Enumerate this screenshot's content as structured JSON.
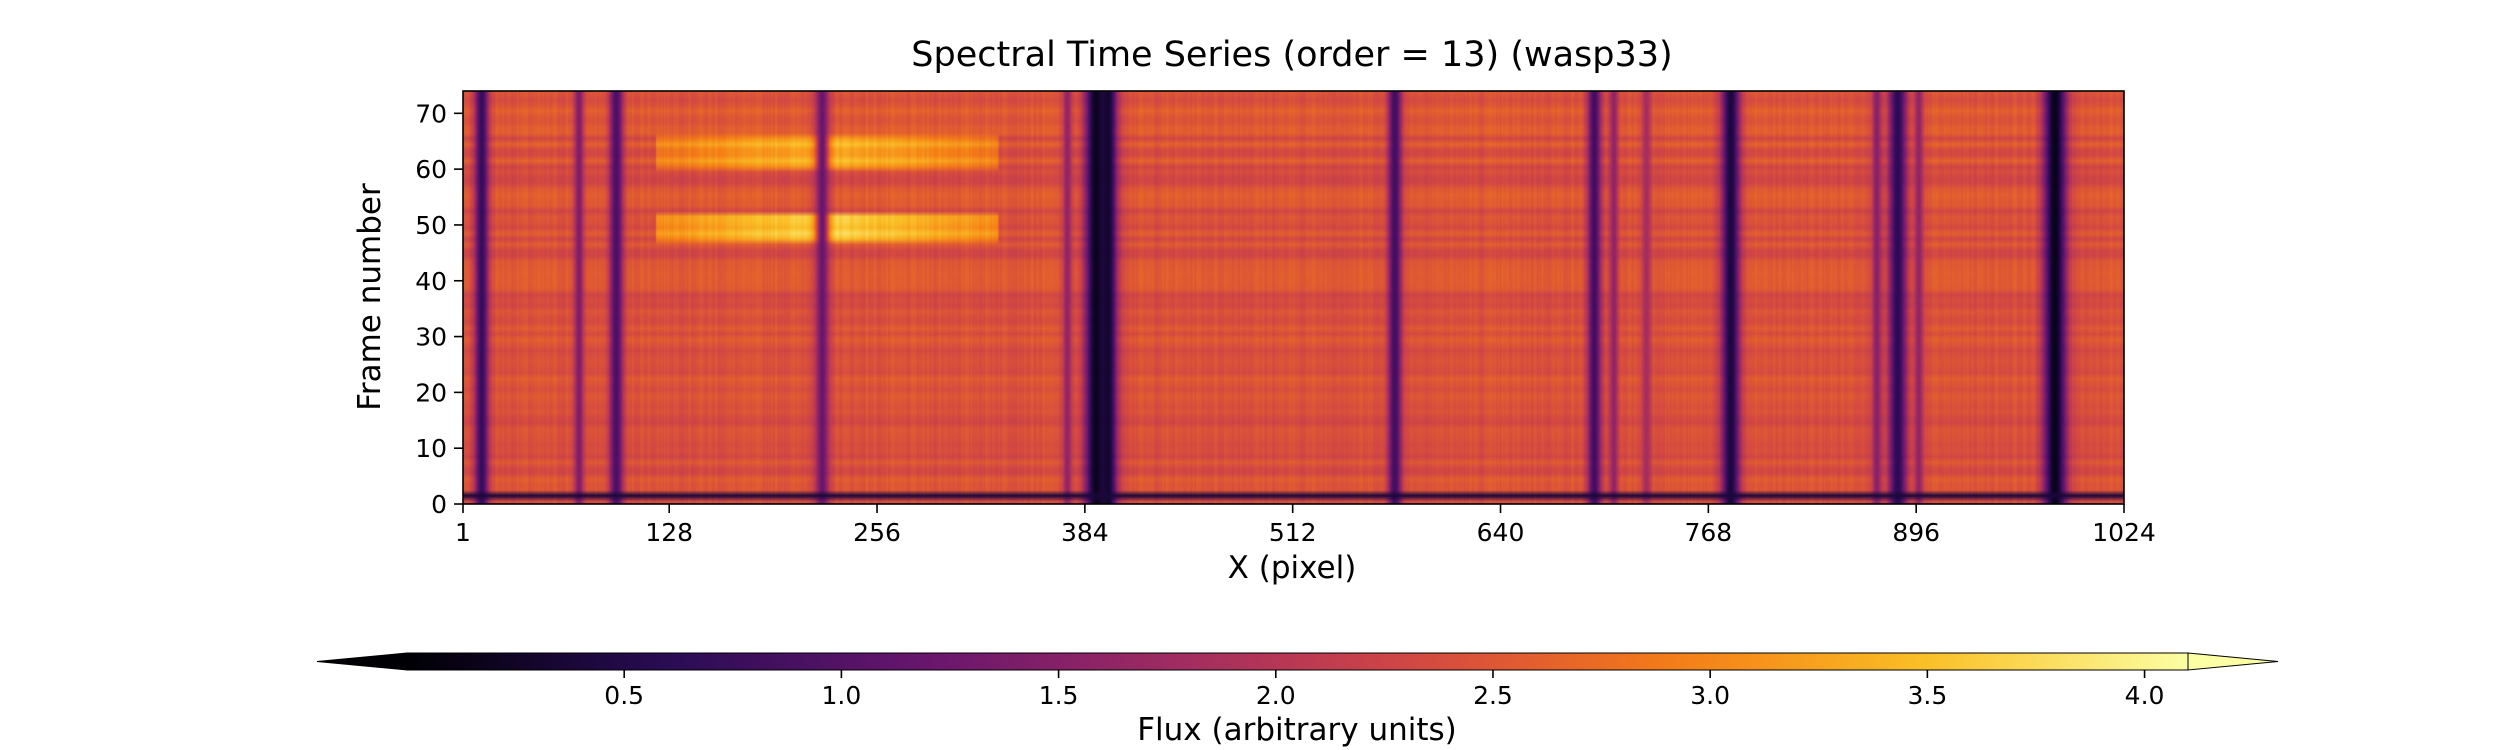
{
  "chart_data": {
    "type": "heatmap",
    "title": "Spectral Time Series (order = 13) (wasp33)",
    "xlabel": "X (pixel)",
    "ylabel": "Frame number",
    "xlim": [
      1,
      1024
    ],
    "ylim": [
      0,
      74
    ],
    "x_ticks": [
      1,
      128,
      256,
      384,
      512,
      640,
      768,
      896,
      1024
    ],
    "y_ticks": [
      0,
      10,
      20,
      30,
      40,
      50,
      60,
      70
    ],
    "baseline_flux": 2.45,
    "absorption_lines": [
      {
        "x": 12,
        "width": 3,
        "flux": 0.7
      },
      {
        "x": 72,
        "width": 2,
        "flux": 1.4
      },
      {
        "x": 95,
        "width": 3,
        "flux": 0.9
      },
      {
        "x": 222,
        "width": 3,
        "flux": 1.2
      },
      {
        "x": 373,
        "width": 2,
        "flux": 1.6
      },
      {
        "x": 391,
        "width": 5,
        "flux": 0.15
      },
      {
        "x": 398,
        "width": 4,
        "flux": 0.3
      },
      {
        "x": 575,
        "width": 3,
        "flux": 0.8
      },
      {
        "x": 698,
        "width": 3,
        "flux": 0.8
      },
      {
        "x": 710,
        "width": 2,
        "flux": 1.6
      },
      {
        "x": 730,
        "width": 2,
        "flux": 1.8
      },
      {
        "x": 782,
        "width": 4,
        "flux": 0.4
      },
      {
        "x": 872,
        "width": 2,
        "flux": 1.5
      },
      {
        "x": 885,
        "width": 4,
        "flux": 0.6
      },
      {
        "x": 898,
        "width": 2,
        "flux": 1.6
      },
      {
        "x": 982,
        "width": 5,
        "flux": 0.15
      }
    ],
    "bright_bands": [
      {
        "x_start": 120,
        "x_end": 330,
        "y_start": 47,
        "y_end": 52,
        "flux": 3.7
      },
      {
        "x_start": 120,
        "x_end": 330,
        "y_start": 60,
        "y_end": 66,
        "flux": 3.4
      }
    ],
    "colorbar": {
      "label": "Flux (arbitrary units)",
      "colormap": "inferno",
      "ticks": [
        0.5,
        1.0,
        1.5,
        2.0,
        2.5,
        3.0,
        3.5,
        4.0
      ],
      "tick_labels": [
        "0.5",
        "1.0",
        "1.5",
        "2.0",
        "2.5",
        "3.0",
        "3.5",
        "4.0"
      ],
      "vmin": 0.0,
      "vmax": 4.1,
      "extend": "both"
    }
  }
}
